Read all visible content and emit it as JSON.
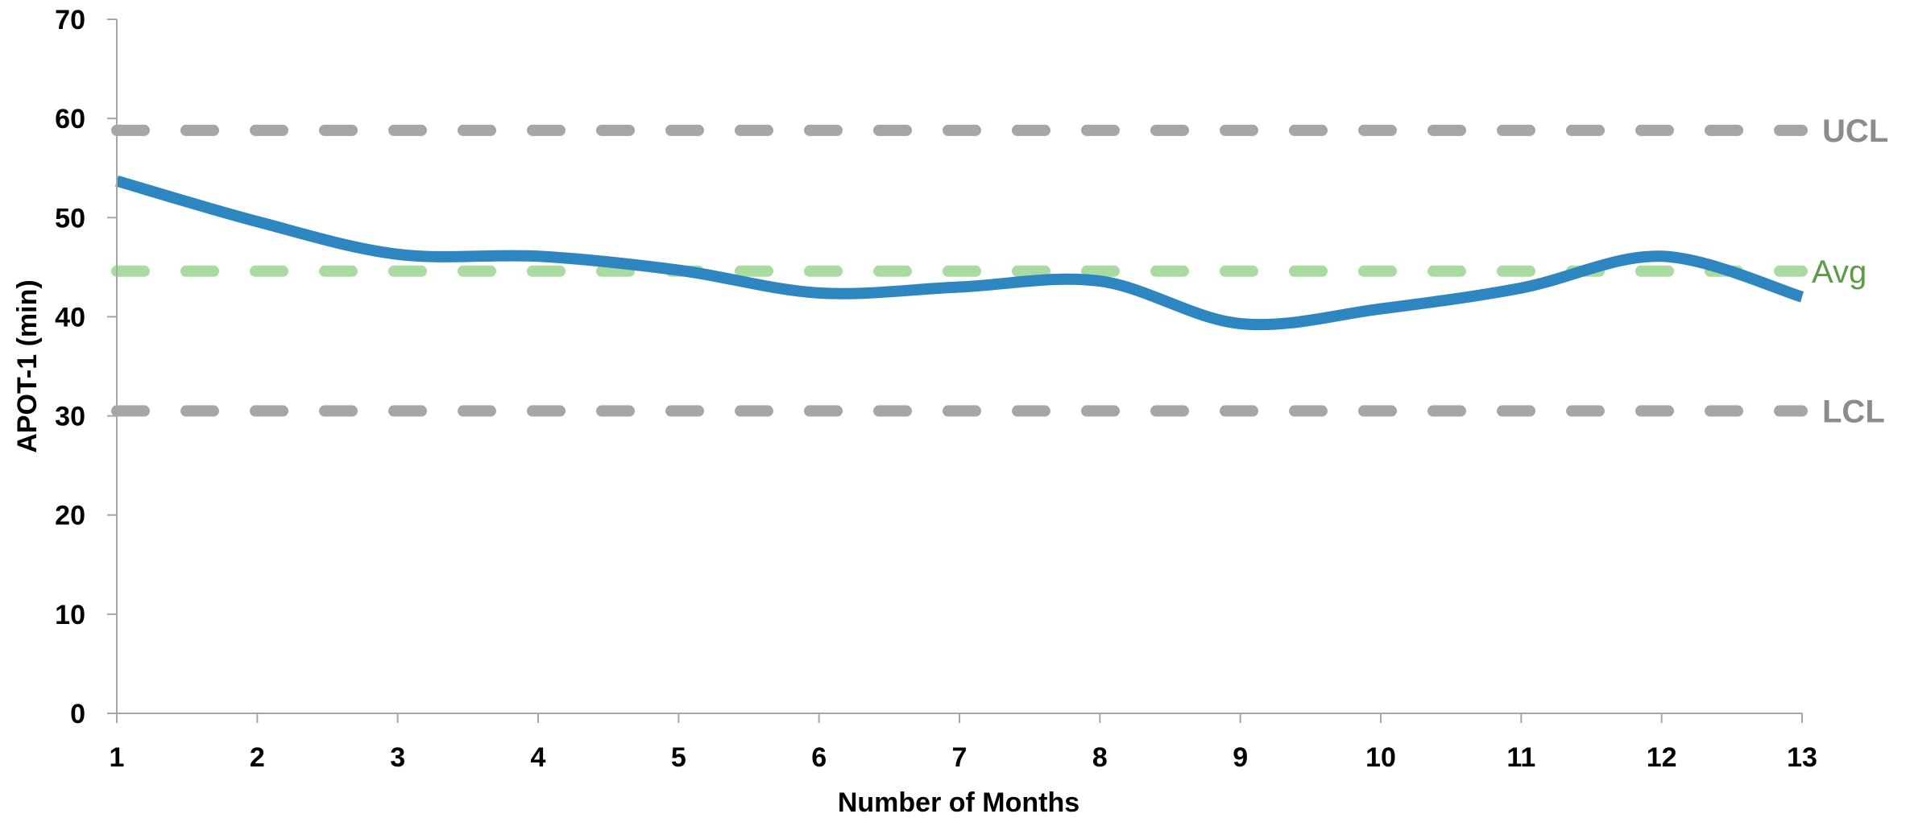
{
  "chart_data": {
    "type": "line",
    "xlabel": "Number of Months",
    "ylabel": "APOT-1 (min)",
    "x": [
      1,
      2,
      3,
      4,
      5,
      6,
      7,
      8,
      9,
      10,
      11,
      12,
      13
    ],
    "xlim": [
      1,
      13
    ],
    "ylim": [
      0,
      70
    ],
    "yticks": [
      0,
      10,
      20,
      30,
      40,
      50,
      60,
      70
    ],
    "series": [
      {
        "values": [
          53.7,
          49.6,
          46.3,
          46.1,
          44.7,
          42.4,
          43.0,
          43.6,
          39.3,
          40.8,
          42.9,
          46.1,
          42.0
        ],
        "color": "#2e86c1",
        "smooth": true
      }
    ],
    "reference_lines": [
      {
        "label": "UCL",
        "value": 58.8,
        "color": "#a6a6a6",
        "style": "dashed"
      },
      {
        "label": "Avg",
        "value": 44.6,
        "color": "#a9dba0",
        "label_color": "#5e9a4a",
        "style": "dashed"
      },
      {
        "label": "LCL",
        "value": 30.5,
        "color": "#a6a6a6",
        "style": "dashed"
      }
    ],
    "grid": false,
    "legend": "none"
  }
}
